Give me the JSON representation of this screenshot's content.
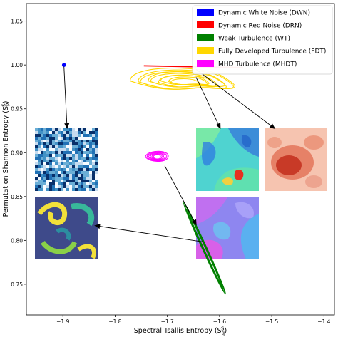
{
  "chart_data": {
    "type": "scatter",
    "xlabel": "Spectral Tsallis Entropy (S_q^S)",
    "ylabel": "Permutation Shannon Entropy (S_P^S)",
    "xlim": [
      -1.97,
      -1.38
    ],
    "ylim": [
      0.715,
      1.07
    ],
    "x_ticks": [
      -1.9,
      -1.8,
      -1.7,
      -1.6,
      -1.5,
      -1.4
    ],
    "x_tick_labels": [
      "−1.9",
      "−1.8",
      "−1.7",
      "−1.6",
      "−1.5",
      "−1.4"
    ],
    "y_ticks": [
      0.75,
      0.8,
      0.85,
      0.9,
      0.95,
      1.0,
      1.05
    ],
    "y_tick_labels": [
      "0.75",
      "0.80",
      "0.85",
      "0.90",
      "0.95",
      "1.00",
      "1.05"
    ],
    "legend_position": "top-right",
    "series": [
      {
        "name": "Dynamic White Noise (DWN)",
        "color": "#0000ff",
        "center": [
          -1.898,
          1.0
        ],
        "spread": [
          0.002,
          0.001
        ]
      },
      {
        "name": "Dynamic Red Noise (DRN)",
        "color": "#ff0000",
        "x_range": [
          -1.745,
          -1.555
        ],
        "y_range": [
          0.997,
          0.999
        ]
      },
      {
        "name": "Weak Turbulence (WT)",
        "color": "#008000",
        "x_range": [
          -1.668,
          -1.588
        ],
        "y_range": [
          0.738,
          0.842
        ]
      },
      {
        "name": "Fully Developed Turbulence (FDT)",
        "color": "#ffd700",
        "x_range": [
          -1.752,
          -1.535
        ],
        "y_range": [
          0.963,
          0.995
        ]
      },
      {
        "name": "MHD Turbulence (MHDT)",
        "color": "#ff00ff",
        "center": [
          -1.72,
          0.895
        ],
        "spread": [
          0.012,
          0.006
        ]
      }
    ],
    "annotations": [
      {
        "target": "Dynamic White Noise (DWN)",
        "from": [
          -1.898,
          0.998
        ],
        "to": [
          -1.892,
          0.927
        ],
        "image": "white-noise-field",
        "image_center": [
          -1.9,
          0.89
        ]
      },
      {
        "target": "Fully Developed Turbulence (FDT)",
        "from": [
          -1.645,
          0.986
        ],
        "to": [
          -1.598,
          0.927
        ],
        "image": "fdt-vorticity-field",
        "image_center": [
          -1.595,
          0.89
        ]
      },
      {
        "target": "Dynamic Red Noise (DRN)",
        "from": [
          -1.645,
          0.995
        ],
        "to": [
          -1.493,
          0.927
        ],
        "image": "red-noise-field",
        "image_center": [
          -1.48,
          0.89
        ]
      },
      {
        "target": "MHD Turbulence (MHDT)",
        "from": [
          -1.705,
          0.885
        ],
        "to": [
          -1.644,
          0.817
        ],
        "image": "mhd-field",
        "image_center": [
          -1.595,
          0.813
        ]
      },
      {
        "target": "Weak Turbulence (WT)",
        "from": [
          -1.628,
          0.798
        ],
        "to": [
          -1.84,
          0.817
        ],
        "image": "weak-turbulence-field",
        "image_center": [
          -1.9,
          0.813
        ]
      }
    ]
  }
}
